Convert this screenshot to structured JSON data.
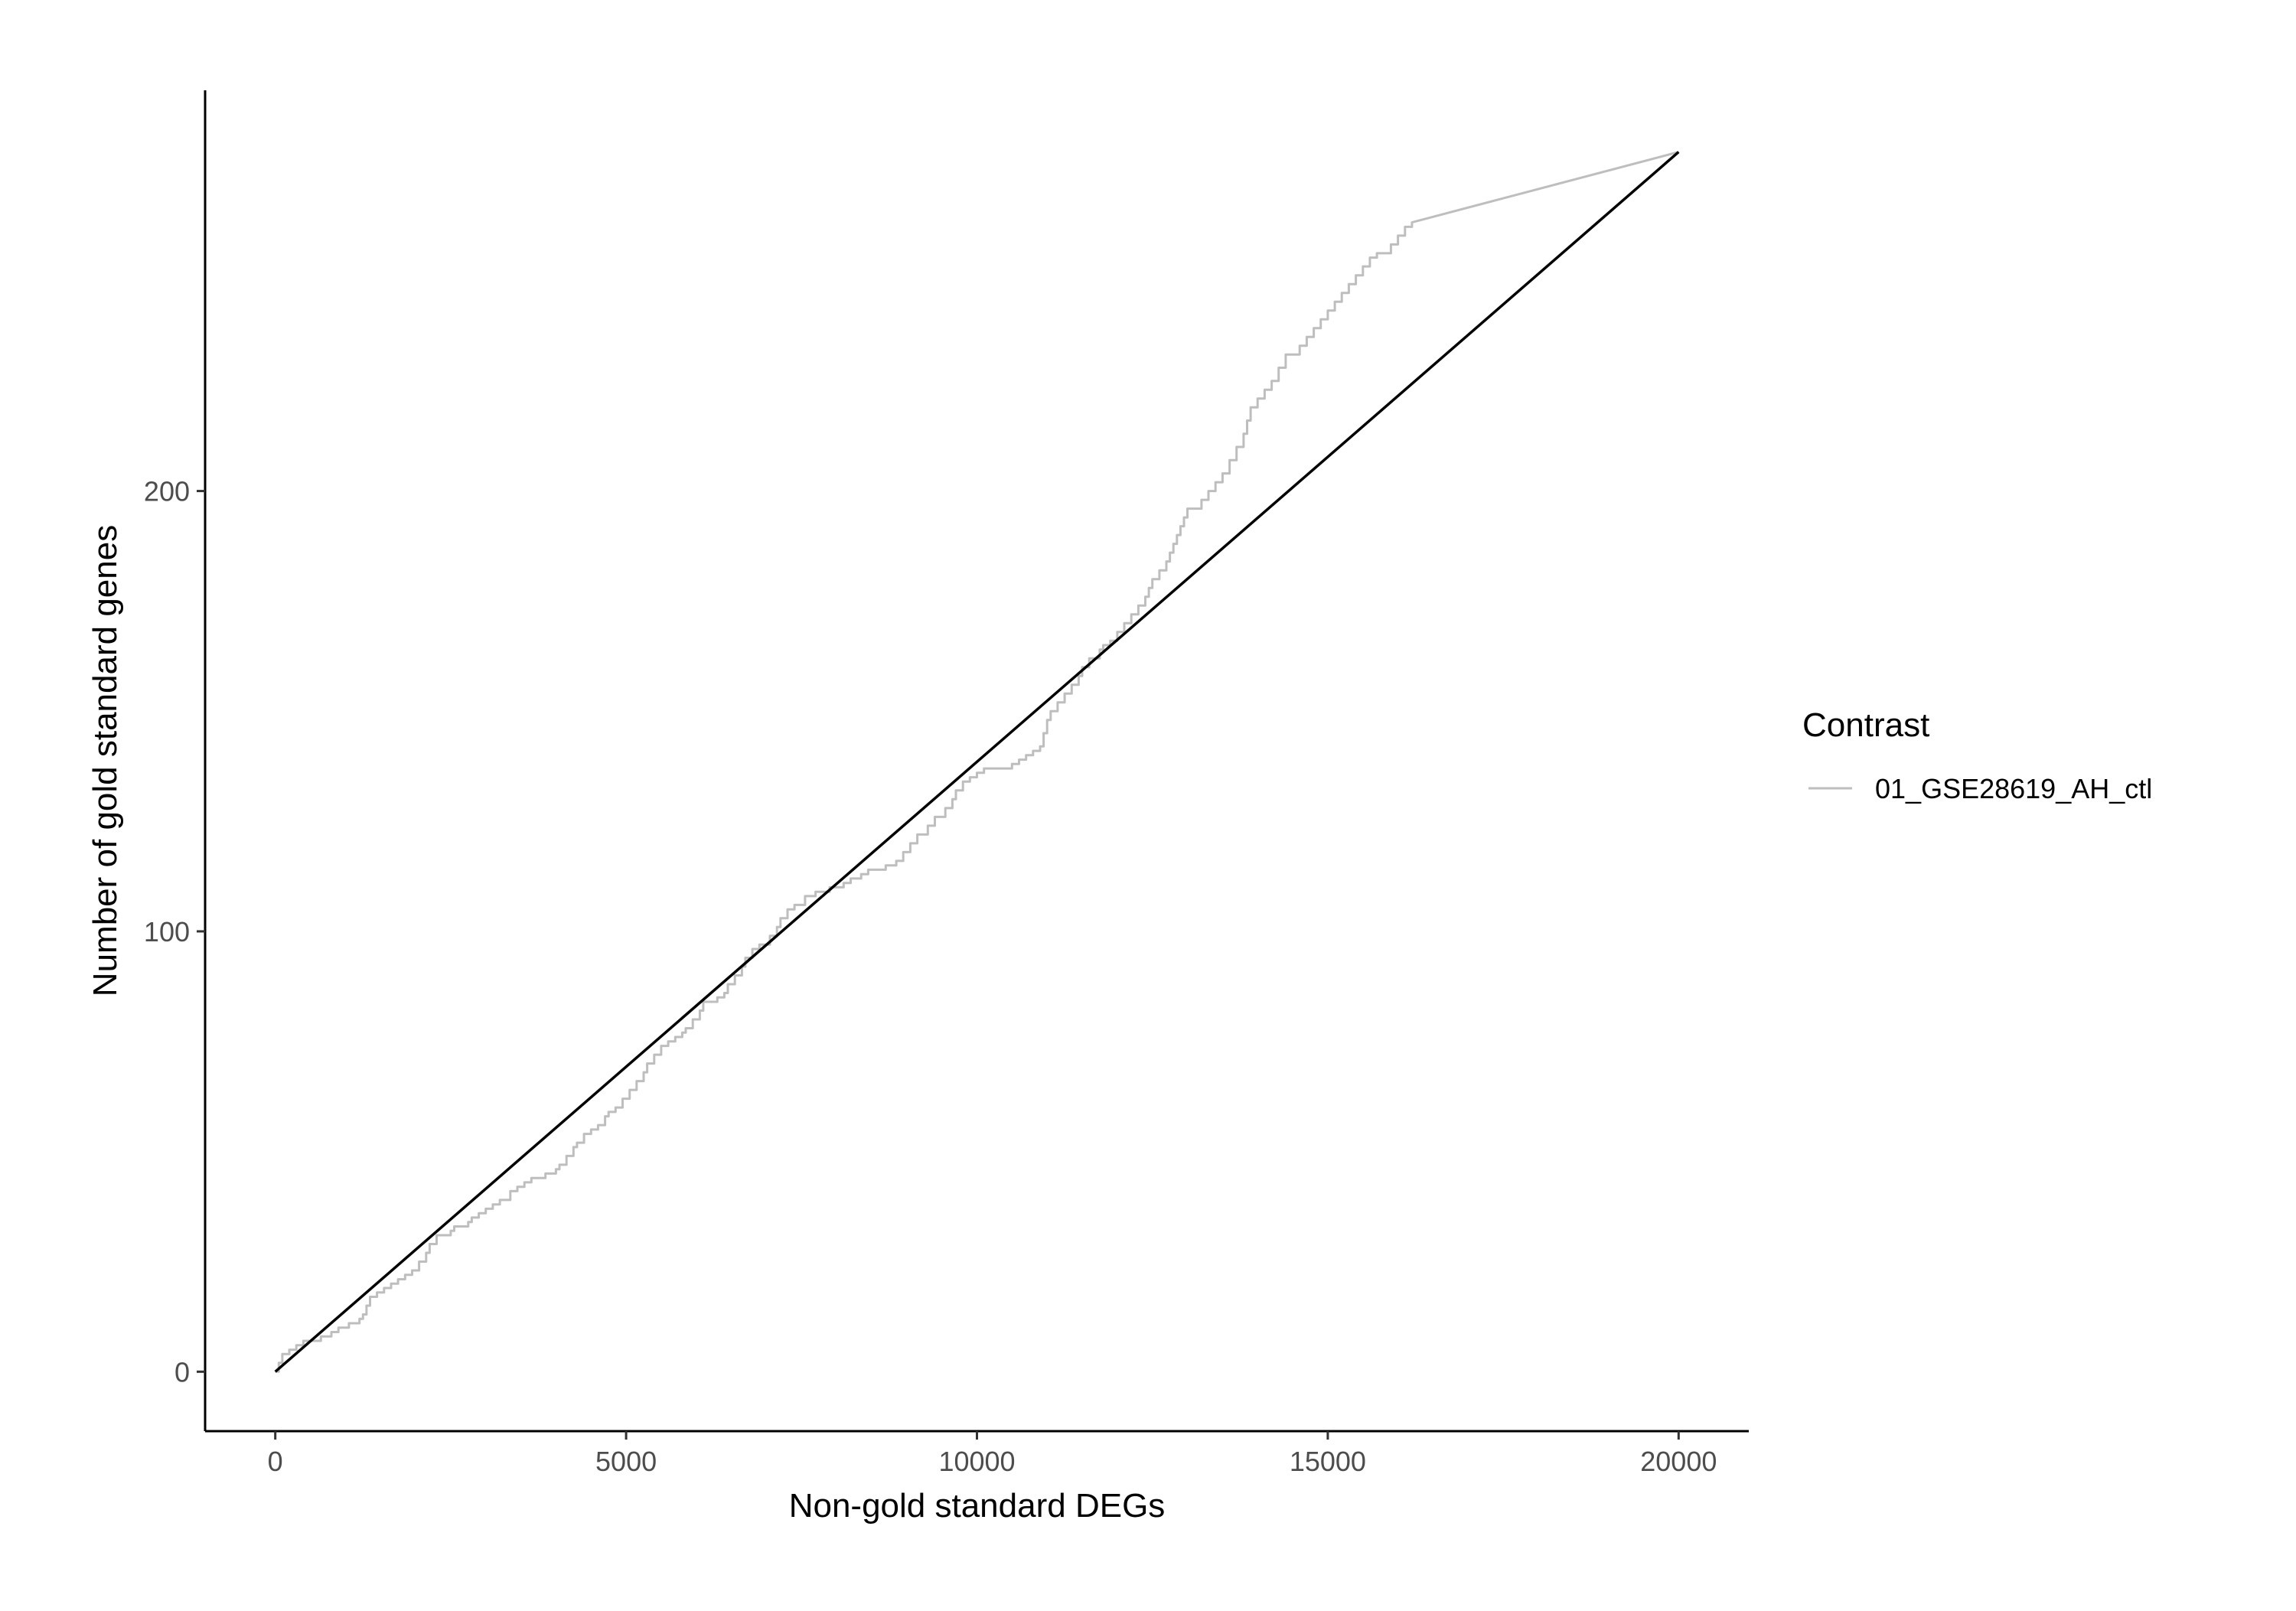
{
  "chart_data": {
    "type": "line",
    "title": "",
    "xlabel": "Non-gold standard DEGs",
    "ylabel": "Number of gold standard genes",
    "xlim": [
      -1000,
      21000
    ],
    "ylim": [
      -13.5,
      291
    ],
    "x_ticks": [
      0,
      5000,
      10000,
      15000,
      20000
    ],
    "x_tick_labels": [
      "0",
      "5000",
      "10000",
      "15000",
      "20000"
    ],
    "y_ticks": [
      0,
      100,
      200
    ],
    "y_tick_labels": [
      "0",
      "100",
      "200"
    ],
    "grid": false,
    "legend": {
      "title": "Contrast",
      "placement": "right",
      "entries": [
        {
          "label": "01_GSE28619_AH_ctl",
          "color": "#bebebe"
        }
      ]
    },
    "series": [
      {
        "name": "01_GSE28619_AH_ctl",
        "color": "#bebebe",
        "step": true,
        "points": [
          [
            0,
            0
          ],
          [
            50,
            2
          ],
          [
            100,
            4
          ],
          [
            200,
            5
          ],
          [
            300,
            6
          ],
          [
            400,
            7
          ],
          [
            600,
            7
          ],
          [
            650,
            8
          ],
          [
            800,
            9
          ],
          [
            900,
            10
          ],
          [
            1000,
            10
          ],
          [
            1050,
            11
          ],
          [
            1200,
            12
          ],
          [
            1250,
            13
          ],
          [
            1300,
            15
          ],
          [
            1350,
            17
          ],
          [
            1450,
            18
          ],
          [
            1550,
            19
          ],
          [
            1650,
            20
          ],
          [
            1750,
            21
          ],
          [
            1850,
            22
          ],
          [
            1950,
            23
          ],
          [
            2050,
            25
          ],
          [
            2150,
            27
          ],
          [
            2200,
            29
          ],
          [
            2300,
            31
          ],
          [
            2500,
            32
          ],
          [
            2550,
            33
          ],
          [
            2750,
            34
          ],
          [
            2800,
            35
          ],
          [
            2900,
            36
          ],
          [
            3000,
            37
          ],
          [
            3100,
            38
          ],
          [
            3200,
            39
          ],
          [
            3350,
            41
          ],
          [
            3450,
            42
          ],
          [
            3550,
            43
          ],
          [
            3650,
            44
          ],
          [
            3850,
            45
          ],
          [
            4000,
            46
          ],
          [
            4050,
            47
          ],
          [
            4150,
            49
          ],
          [
            4250,
            51
          ],
          [
            4300,
            52
          ],
          [
            4400,
            54
          ],
          [
            4500,
            55
          ],
          [
            4600,
            56
          ],
          [
            4700,
            58
          ],
          [
            4750,
            59
          ],
          [
            4850,
            60
          ],
          [
            4950,
            62
          ],
          [
            5050,
            64
          ],
          [
            5150,
            66
          ],
          [
            5250,
            68
          ],
          [
            5300,
            70
          ],
          [
            5400,
            72
          ],
          [
            5500,
            74
          ],
          [
            5600,
            75
          ],
          [
            5700,
            76
          ],
          [
            5800,
            77
          ],
          [
            5850,
            78
          ],
          [
            5950,
            80
          ],
          [
            6050,
            82
          ],
          [
            6100,
            84
          ],
          [
            6300,
            85
          ],
          [
            6400,
            86
          ],
          [
            6450,
            88
          ],
          [
            6550,
            90
          ],
          [
            6650,
            92
          ],
          [
            6700,
            94
          ],
          [
            6800,
            96
          ],
          [
            6900,
            97
          ],
          [
            7050,
            99
          ],
          [
            7150,
            101
          ],
          [
            7200,
            103
          ],
          [
            7300,
            105
          ],
          [
            7400,
            106
          ],
          [
            7550,
            108
          ],
          [
            7700,
            109
          ],
          [
            7900,
            110
          ],
          [
            8100,
            111
          ],
          [
            8200,
            112
          ],
          [
            8350,
            113
          ],
          [
            8450,
            114
          ],
          [
            8700,
            115
          ],
          [
            8850,
            116
          ],
          [
            8950,
            118
          ],
          [
            9050,
            120
          ],
          [
            9150,
            122
          ],
          [
            9300,
            124
          ],
          [
            9400,
            126
          ],
          [
            9550,
            128
          ],
          [
            9650,
            130
          ],
          [
            9700,
            132
          ],
          [
            9800,
            134
          ],
          [
            9900,
            135
          ],
          [
            10000,
            136
          ],
          [
            10100,
            137
          ],
          [
            10500,
            138
          ],
          [
            10600,
            139
          ],
          [
            10700,
            140
          ],
          [
            10800,
            141
          ],
          [
            10900,
            142
          ],
          [
            10950,
            145
          ],
          [
            11000,
            148
          ],
          [
            11050,
            150
          ],
          [
            11150,
            152
          ],
          [
            11250,
            154
          ],
          [
            11350,
            156
          ],
          [
            11450,
            158
          ],
          [
            11500,
            160
          ],
          [
            11600,
            162
          ],
          [
            11750,
            164
          ],
          [
            11800,
            165
          ],
          [
            11900,
            166
          ],
          [
            12000,
            168
          ],
          [
            12100,
            170
          ],
          [
            12200,
            172
          ],
          [
            12300,
            174
          ],
          [
            12400,
            176
          ],
          [
            12450,
            178
          ],
          [
            12500,
            180
          ],
          [
            12600,
            182
          ],
          [
            12700,
            184
          ],
          [
            12750,
            186
          ],
          [
            12800,
            188
          ],
          [
            12850,
            190
          ],
          [
            12900,
            192
          ],
          [
            12950,
            194
          ],
          [
            13000,
            196
          ],
          [
            13200,
            198
          ],
          [
            13300,
            200
          ],
          [
            13400,
            202
          ],
          [
            13500,
            204
          ],
          [
            13600,
            207
          ],
          [
            13700,
            210
          ],
          [
            13800,
            213
          ],
          [
            13850,
            216
          ],
          [
            13900,
            219
          ],
          [
            14000,
            221
          ],
          [
            14100,
            223
          ],
          [
            14200,
            225
          ],
          [
            14300,
            228
          ],
          [
            14400,
            231
          ],
          [
            14600,
            233
          ],
          [
            14700,
            235
          ],
          [
            14800,
            237
          ],
          [
            14900,
            239
          ],
          [
            15000,
            241
          ],
          [
            15100,
            243
          ],
          [
            15200,
            245
          ],
          [
            15300,
            247
          ],
          [
            15400,
            249
          ],
          [
            15500,
            251
          ],
          [
            15600,
            253
          ],
          [
            15700,
            254
          ],
          [
            15900,
            256
          ],
          [
            16000,
            258
          ],
          [
            16100,
            260
          ],
          [
            16200,
            261
          ],
          [
            20000,
            277
          ]
        ]
      },
      {
        "name": "",
        "color": "#000000",
        "step": false,
        "points": [
          [
            0,
            0
          ],
          [
            20000,
            277
          ]
        ]
      }
    ]
  }
}
